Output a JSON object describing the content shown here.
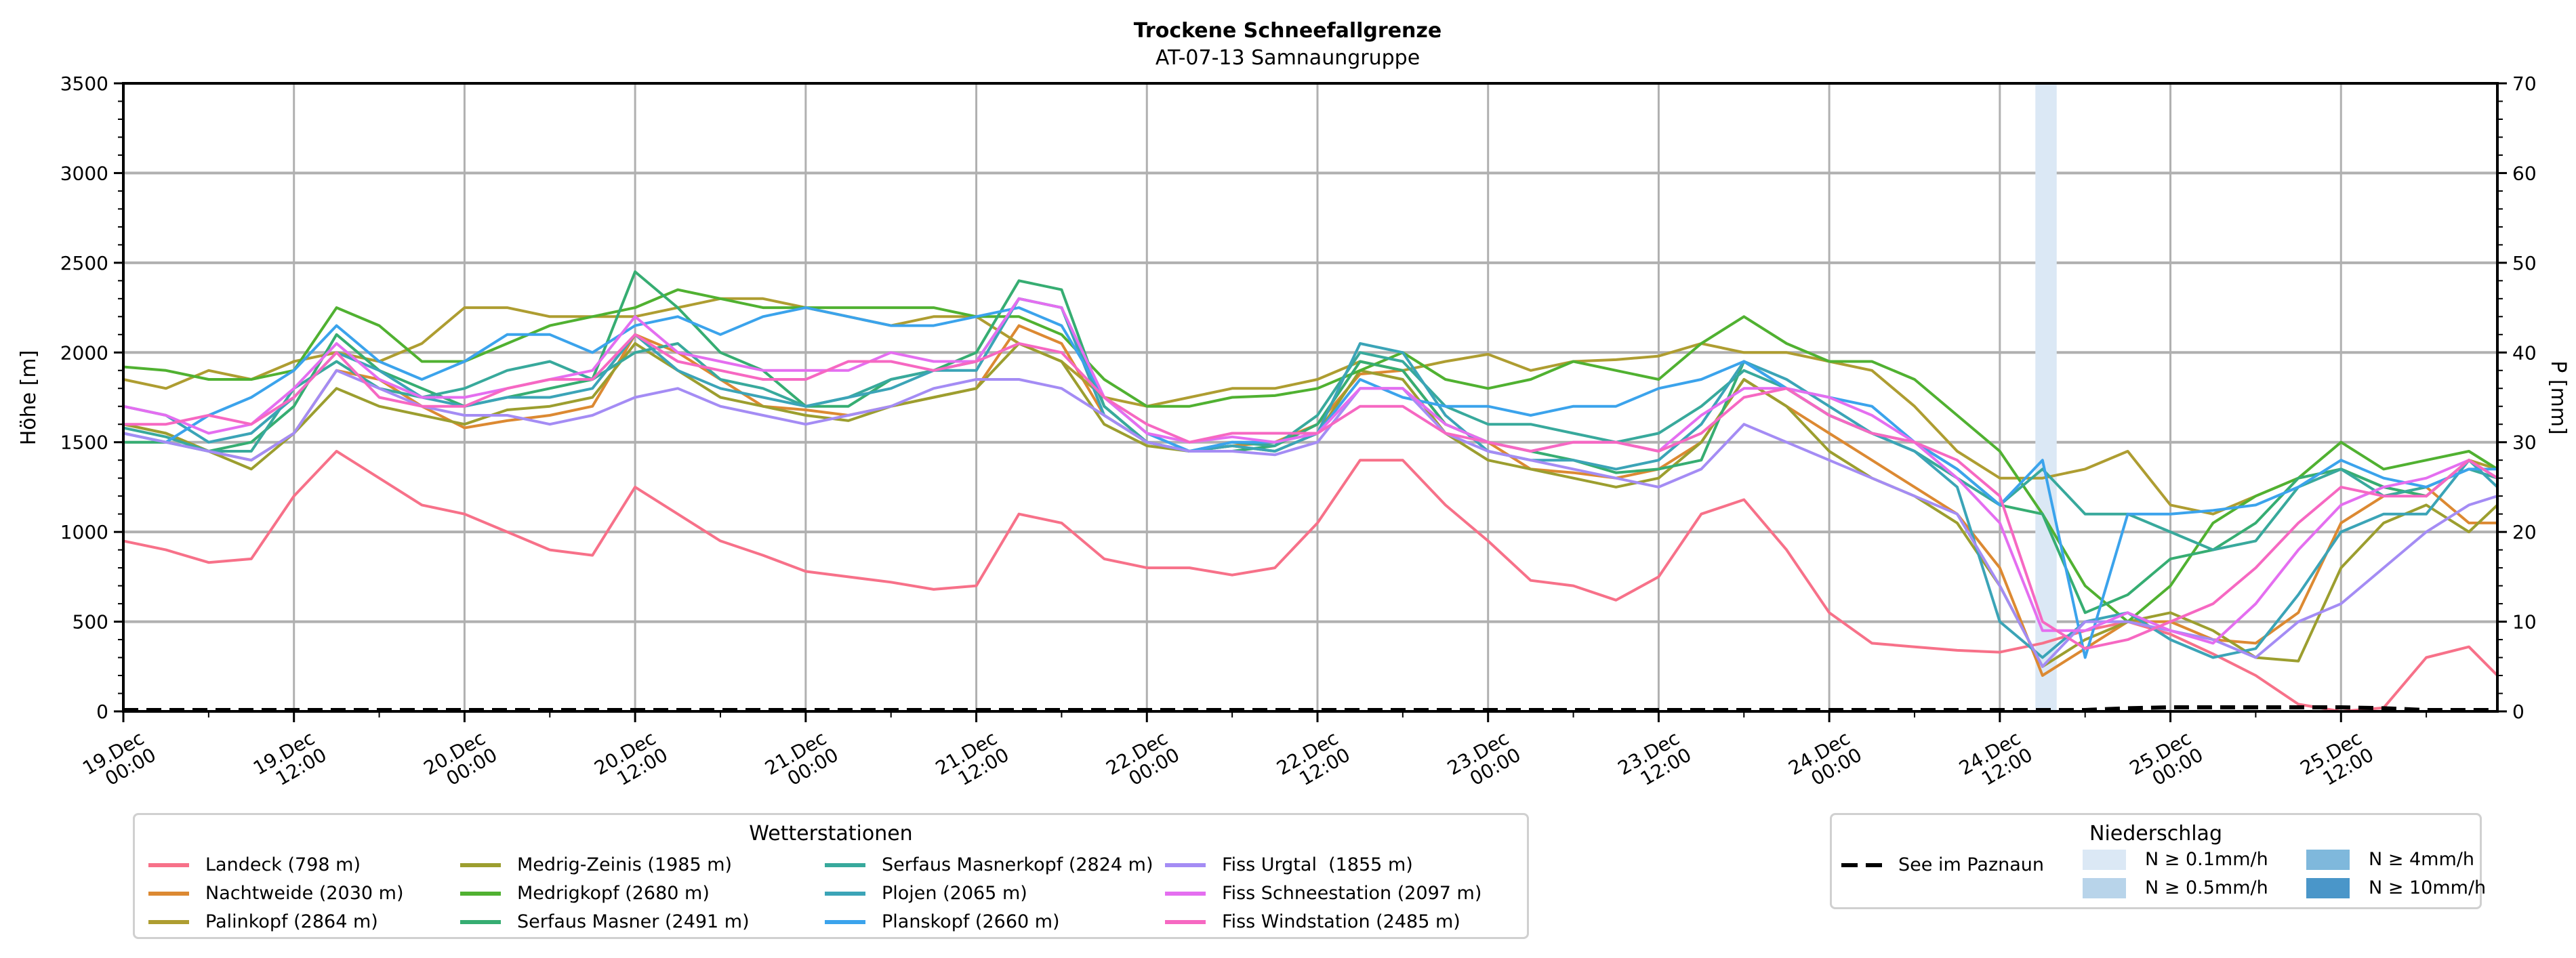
{
  "chart_data": {
    "type": "line",
    "title": "Trockene Schneefallgrenze",
    "subtitle": "AT-07-13 Samnaungruppe",
    "ylabel": "Höhe [m]",
    "y2label": "P [mm]",
    "ylim": [
      0,
      3500
    ],
    "y2lim": [
      0,
      70
    ],
    "yticks": [
      "0",
      "500",
      "1000",
      "1500",
      "2000",
      "2500",
      "3000",
      "3500"
    ],
    "y2ticks": [
      "0",
      "10",
      "20",
      "30",
      "40",
      "50",
      "60",
      "70"
    ],
    "xlim_hours": [
      0,
      167
    ],
    "xticks": [
      {
        "hour": 0,
        "label": [
          "19.Dec",
          "00:00"
        ]
      },
      {
        "hour": 12,
        "label": [
          "19.Dec",
          "12:00"
        ]
      },
      {
        "hour": 24,
        "label": [
          "20.Dec",
          "00:00"
        ]
      },
      {
        "hour": 36,
        "label": [
          "20.Dec",
          "12:00"
        ]
      },
      {
        "hour": 48,
        "label": [
          "21.Dec",
          "00:00"
        ]
      },
      {
        "hour": 60,
        "label": [
          "21.Dec",
          "12:00"
        ]
      },
      {
        "hour": 72,
        "label": [
          "22.Dec",
          "00:00"
        ]
      },
      {
        "hour": 84,
        "label": [
          "22.Dec",
          "12:00"
        ]
      },
      {
        "hour": 96,
        "label": [
          "23.Dec",
          "00:00"
        ]
      },
      {
        "hour": 108,
        "label": [
          "23.Dec",
          "12:00"
        ]
      },
      {
        "hour": 120,
        "label": [
          "24.Dec",
          "00:00"
        ]
      },
      {
        "hour": 132,
        "label": [
          "24.Dec",
          "12:00"
        ]
      },
      {
        "hour": 144,
        "label": [
          "25.Dec",
          "00:00"
        ]
      },
      {
        "hour": 156,
        "label": [
          "25.Dec",
          "12:00"
        ]
      }
    ],
    "grid": true,
    "x_step_hours": 3,
    "series": [
      {
        "name": "Landeck (798 m)",
        "color": "#f77189",
        "values": [
          950,
          900,
          830,
          850,
          1200,
          1450,
          1300,
          1150,
          1100,
          1000,
          900,
          870,
          1250,
          1100,
          950,
          870,
          780,
          750,
          720,
          680,
          700,
          1100,
          1050,
          850,
          800,
          800,
          760,
          800,
          1050,
          1400,
          1400,
          1150,
          950,
          730,
          700,
          620,
          750,
          1100,
          1180,
          900,
          550,
          380,
          360,
          340,
          330,
          380,
          450,
          500,
          430,
          320,
          200,
          40,
          0,
          20,
          300,
          360,
          200,
          110
        ]
      },
      {
        "name": "Nachtweide (2030 m)",
        "color": "#dc8932",
        "values": [
          1600,
          1550,
          1450,
          1400,
          1550,
          1900,
          1850,
          1700,
          1580,
          1620,
          1650,
          1700,
          2100,
          2000,
          1850,
          1700,
          1680,
          1650,
          1700,
          1750,
          1800,
          2150,
          2050,
          1650,
          1500,
          1450,
          1480,
          1500,
          1600,
          1880,
          1900,
          1600,
          1500,
          1350,
          1330,
          1300,
          1350,
          1500,
          1850,
          1700,
          1550,
          1400,
          1250,
          1100,
          800,
          200,
          350,
          500,
          500,
          400,
          380,
          550,
          1050,
          1200,
          1250,
          1050,
          1050,
          1150
        ]
      },
      {
        "name": "Palinkopf (2864 m)",
        "color": "#ae9d31",
        "values": [
          1850,
          1800,
          1900,
          1850,
          1950,
          2000,
          1950,
          2050,
          2250,
          2250,
          2200,
          2200,
          2200,
          2250,
          2300,
          2300,
          2250,
          2200,
          2150,
          2200,
          2200,
          2050,
          1950,
          1750,
          1700,
          1750,
          1800,
          1800,
          1850,
          1950,
          1900,
          1950,
          1990,
          1900,
          1950,
          1960,
          1980,
          2050,
          2000,
          2000,
          1950,
          1900,
          1700,
          1450,
          1300,
          1300,
          1350,
          1450,
          1150,
          1100,
          1200,
          1300,
          1350,
          1250,
          1200,
          1400,
          1350,
          1300
        ]
      },
      {
        "name": "Medrig-Zeinis (1985 m)",
        "color": "#9c9e2f",
        "values": [
          1600,
          1550,
          1450,
          1350,
          1550,
          1800,
          1700,
          1650,
          1600,
          1680,
          1700,
          1750,
          2050,
          1900,
          1750,
          1700,
          1650,
          1620,
          1700,
          1750,
          1800,
          2050,
          1950,
          1600,
          1480,
          1450,
          1480,
          1450,
          1550,
          1900,
          1850,
          1550,
          1400,
          1350,
          1300,
          1250,
          1300,
          1500,
          1850,
          1700,
          1450,
          1300,
          1200,
          1050,
          700,
          250,
          400,
          500,
          550,
          450,
          300,
          280,
          800,
          1050,
          1150,
          1000,
          1150,
          1100
        ]
      },
      {
        "name": "Medrigkopf (2680 m)",
        "color": "#50b131",
        "values": [
          1920,
          1900,
          1850,
          1850,
          1900,
          2250,
          2150,
          1950,
          1950,
          2050,
          2150,
          2200,
          2250,
          2350,
          2300,
          2250,
          2250,
          2250,
          2250,
          2250,
          2200,
          2200,
          2100,
          1850,
          1700,
          1700,
          1750,
          1760,
          1800,
          1900,
          2000,
          1850,
          1800,
          1850,
          1950,
          1900,
          1850,
          2050,
          2200,
          2050,
          1950,
          1950,
          1850,
          1650,
          1450,
          1100,
          700,
          500,
          700,
          1050,
          1200,
          1300,
          1500,
          1350,
          1400,
          1450,
          1350,
          1380
        ]
      },
      {
        "name": "Serfaus Masner (2491 m)",
        "color": "#36ad72",
        "values": [
          1500,
          1500,
          1450,
          1500,
          1700,
          2100,
          1900,
          1800,
          1700,
          1750,
          1800,
          1850,
          2450,
          2250,
          2000,
          1900,
          1700,
          1700,
          1850,
          1900,
          2000,
          2400,
          2350,
          1700,
          1500,
          1450,
          1450,
          1480,
          1600,
          1950,
          1900,
          1600,
          1500,
          1450,
          1400,
          1330,
          1350,
          1400,
          1950,
          1800,
          1650,
          1550,
          1500,
          1350,
          1150,
          1100,
          550,
          650,
          850,
          900,
          1050,
          1300,
          1350,
          1250,
          1200,
          1400,
          1300,
          1250
        ]
      },
      {
        "name": "Serfaus Masnerkopf (2824 m)",
        "color": "#38a99c",
        "values": [
          1580,
          1530,
          1450,
          1450,
          1800,
          1950,
          1800,
          1750,
          1800,
          1900,
          1950,
          1850,
          2000,
          2050,
          1850,
          1800,
          1700,
          1750,
          1850,
          1900,
          1950,
          2300,
          2250,
          1700,
          1500,
          1450,
          1500,
          1480,
          1650,
          2000,
          1950,
          1700,
          1600,
          1600,
          1550,
          1500,
          1550,
          1700,
          1900,
          1800,
          1650,
          1550,
          1450,
          1300,
          1150,
          1350,
          1100,
          1100,
          1000,
          900,
          950,
          1250,
          1350,
          1200,
          1250,
          1350,
          1300,
          1300
        ]
      },
      {
        "name": "Plojen (2065 m)",
        "color": "#3ba4b7",
        "values": [
          1700,
          1650,
          1500,
          1550,
          1750,
          2000,
          1900,
          1750,
          1700,
          1750,
          1750,
          1800,
          2100,
          1900,
          1800,
          1750,
          1700,
          1750,
          1800,
          1900,
          1900,
          2300,
          2250,
          1650,
          1500,
          1450,
          1480,
          1450,
          1550,
          2050,
          2000,
          1650,
          1450,
          1400,
          1400,
          1350,
          1400,
          1600,
          1950,
          1850,
          1700,
          1550,
          1450,
          1250,
          500,
          300,
          500,
          550,
          400,
          300,
          350,
          650,
          1000,
          1100,
          1100,
          1400,
          1250,
          1200
        ]
      },
      {
        "name": "Planskopf (2660 m)",
        "color": "#3ba3ec",
        "values": [
          1550,
          1500,
          1650,
          1750,
          1900,
          2150,
          1950,
          1850,
          1950,
          2100,
          2100,
          2000,
          2150,
          2200,
          2100,
          2200,
          2250,
          2200,
          2150,
          2150,
          2200,
          2250,
          2150,
          1750,
          1550,
          1450,
          1500,
          1500,
          1550,
          1850,
          1750,
          1700,
          1700,
          1650,
          1700,
          1700,
          1800,
          1850,
          1950,
          1800,
          1750,
          1700,
          1500,
          1350,
          1150,
          1400,
          300,
          1100,
          1100,
          1120,
          1150,
          1250,
          1400,
          1300,
          1250,
          1350,
          1350,
          1300
        ]
      },
      {
        "name": "Fiss Urgtal  (1855 m)",
        "color": "#a48cf4",
        "values": [
          1550,
          1500,
          1450,
          1400,
          1550,
          1900,
          1800,
          1700,
          1650,
          1650,
          1600,
          1650,
          1750,
          1800,
          1700,
          1650,
          1600,
          1650,
          1700,
          1800,
          1850,
          1850,
          1800,
          1650,
          1500,
          1450,
          1450,
          1430,
          1500,
          1800,
          1800,
          1550,
          1450,
          1400,
          1350,
          1300,
          1250,
          1350,
          1600,
          1500,
          1400,
          1300,
          1200,
          1100,
          700,
          250,
          500,
          500,
          450,
          400,
          300,
          500,
          600,
          800,
          1000,
          1150,
          1200,
          1150
        ]
      },
      {
        "name": "Fiss Schneestation (2097 m)",
        "color": "#e46ef0",
        "values": [
          1700,
          1650,
          1550,
          1600,
          1800,
          2050,
          1850,
          1750,
          1750,
          1800,
          1850,
          1900,
          2200,
          2000,
          1950,
          1900,
          1900,
          1900,
          2000,
          1950,
          1950,
          2300,
          2250,
          1750,
          1550,
          1500,
          1530,
          1500,
          1550,
          1800,
          1800,
          1600,
          1500,
          1450,
          1500,
          1500,
          1450,
          1650,
          1800,
          1800,
          1750,
          1650,
          1500,
          1300,
          1050,
          450,
          450,
          550,
          450,
          380,
          600,
          900,
          1150,
          1250,
          1300,
          1400,
          1300,
          1250
        ]
      },
      {
        "name": "Fiss Windstation (2485 m)",
        "color": "#f668c2",
        "values": [
          1600,
          1600,
          1650,
          1600,
          1750,
          2000,
          1750,
          1700,
          1700,
          1800,
          1850,
          1850,
          2100,
          1950,
          1900,
          1850,
          1850,
          1950,
          1950,
          1900,
          1950,
          2050,
          2000,
          1750,
          1600,
          1500,
          1550,
          1550,
          1550,
          1700,
          1700,
          1550,
          1500,
          1450,
          1500,
          1500,
          1450,
          1550,
          1750,
          1800,
          1650,
          1550,
          1500,
          1400,
          1200,
          500,
          350,
          400,
          500,
          600,
          800,
          1050,
          1250,
          1200,
          1200,
          1400,
          1300,
          1200
        ]
      }
    ],
    "precip_line": {
      "name": "See im Paznaun",
      "color": "#000000",
      "style": "dashed",
      "values_mm": [
        0,
        0,
        0,
        0,
        0,
        0,
        0,
        0,
        0,
        0,
        0,
        0,
        0,
        0,
        0,
        0,
        0,
        0,
        0,
        0,
        0,
        0,
        0,
        0,
        0,
        0,
        0,
        0,
        0,
        0,
        0,
        0,
        0,
        0,
        0,
        0,
        0,
        0,
        0,
        0,
        0,
        0,
        0,
        0,
        0,
        0,
        0,
        0.2,
        0.3,
        0.3,
        0.3,
        0.3,
        0.3,
        0.2,
        0,
        0,
        0,
        0
      ]
    },
    "precip_bands": [
      {
        "start_hour": 134.5,
        "end_hour": 136,
        "class": "N ≥ 0.1mm/h",
        "color": "#dbe8f5"
      }
    ]
  },
  "legend_stations": {
    "title": "Wetterstationen",
    "items": [
      "Landeck (798 m)",
      "Nachtweide (2030 m)",
      "Palinkopf (2864 m)",
      "Medrig-Zeinis (1985 m)",
      "Medrigkopf (2680 m)",
      "Serfaus Masner (2491 m)",
      "Serfaus Masnerkopf (2824 m)",
      "Plojen (2065 m)",
      "Planskopf (2660 m)",
      "Fiss Urgtal  (1855 m)",
      "Fiss Schneestation (2097 m)",
      "Fiss Windstation (2485 m)"
    ]
  },
  "legend_precip": {
    "title": "Niederschlag",
    "line_label": "See im Paznaun",
    "classes": [
      {
        "label": "N ≥ 0.1mm/h",
        "color": "#dbe8f5"
      },
      {
        "label": "N ≥ 0.5mm/h",
        "color": "#b8d4ea"
      },
      {
        "label": "N ≥ 4mm/h",
        "color": "#7fb8dc"
      },
      {
        "label": "N ≥ 10mm/h",
        "color": "#4a96c9"
      }
    ]
  }
}
